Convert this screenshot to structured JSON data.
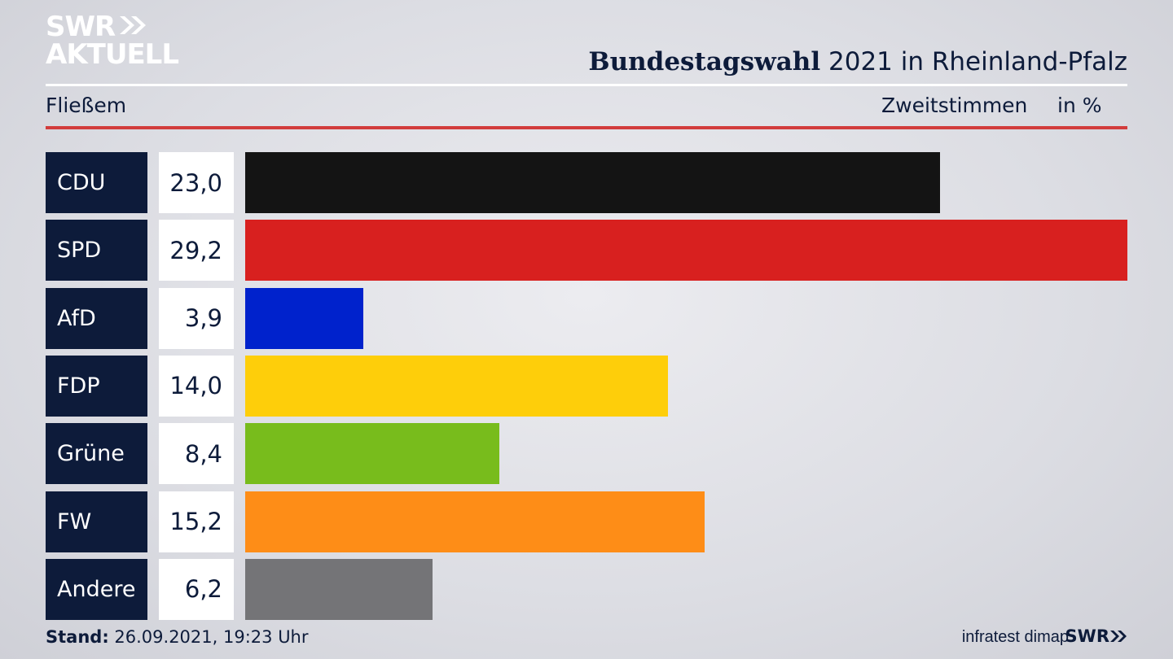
{
  "logo": {
    "line1": "SWR",
    "line2": "AKTUELL"
  },
  "header": {
    "title_bold": "Bundestagswahl",
    "title_rest": "2021 in Rheinland-Pfalz",
    "region": "Fließem",
    "vote_type": "Zweitstimmen",
    "unit": "in %"
  },
  "colors": {
    "accent_red": "#d23c3c",
    "label_bg": "#0d1b3a"
  },
  "chart_data": {
    "type": "bar",
    "orientation": "horizontal",
    "categories": [
      "CDU",
      "SPD",
      "AfD",
      "FDP",
      "Grüne",
      "FW",
      "Andere"
    ],
    "values": [
      23.0,
      29.2,
      3.9,
      14.0,
      8.4,
      15.2,
      6.2
    ],
    "value_labels": [
      "23,0",
      "29,2",
      "3,9",
      "14,0",
      "8,4",
      "15,2",
      "6,2"
    ],
    "colors": [
      "#141414",
      "#d8201f",
      "#0022cc",
      "#fece0a",
      "#78bc1c",
      "#fe8d17",
      "#747477"
    ],
    "xlim": [
      0,
      29.2
    ]
  },
  "footer": {
    "stand_label": "Stand:",
    "stand_value": "26.09.2021, 19:23 Uhr",
    "source": "infratest dimap",
    "brand": "SWR"
  }
}
